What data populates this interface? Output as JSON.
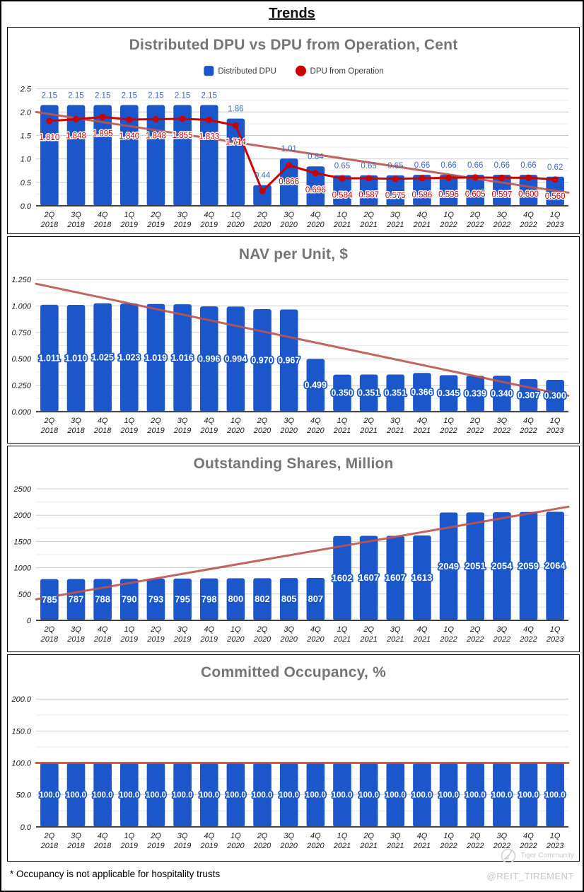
{
  "page": {
    "title": "Trends",
    "footnote": "* Occupancy is not applicable for hospitality trusts",
    "watermark": {
      "community": "Tiger Community",
      "handle": "@REIT_TIREMENT"
    }
  },
  "colors": {
    "bar": "#1b57cb",
    "bar_label": "#3e6bc7",
    "line": "#cc0000",
    "trend": "#bc544e",
    "trend_occupancy": "#d2492a",
    "grid_major": "#cccccc",
    "grid_minor": "#eaeaea",
    "axis": "#3f3f3f",
    "title": "#757575"
  },
  "categories": [
    {
      "q": "2Q",
      "y": "2018"
    },
    {
      "q": "3Q",
      "y": "2018"
    },
    {
      "q": "4Q",
      "y": "2018"
    },
    {
      "q": "1Q",
      "y": "2019"
    },
    {
      "q": "2Q",
      "y": "2019"
    },
    {
      "q": "3Q",
      "y": "2019"
    },
    {
      "q": "4Q",
      "y": "2019"
    },
    {
      "q": "1Q",
      "y": "2020"
    },
    {
      "q": "2Q",
      "y": "2020"
    },
    {
      "q": "3Q",
      "y": "2020"
    },
    {
      "q": "4Q",
      "y": "2020"
    },
    {
      "q": "1Q",
      "y": "2021"
    },
    {
      "q": "2Q",
      "y": "2021"
    },
    {
      "q": "3Q",
      "y": "2021"
    },
    {
      "q": "4Q",
      "y": "2021"
    },
    {
      "q": "1Q",
      "y": "2022"
    },
    {
      "q": "2Q",
      "y": "2022"
    },
    {
      "q": "3Q",
      "y": "2022"
    },
    {
      "q": "4Q",
      "y": "2022"
    },
    {
      "q": "1Q",
      "y": "2023"
    }
  ],
  "chart_data": [
    {
      "type": "bar+line",
      "title": "Distributed DPU vs DPU from Operation, Cent",
      "ylim": [
        0,
        2.5
      ],
      "ticks": [
        {
          "v": 2.5,
          "t": "2.5"
        },
        {
          "v": 2.0,
          "t": "2.0"
        },
        {
          "v": 1.5,
          "t": "1.5"
        },
        {
          "v": 1.0,
          "t": "1.0"
        },
        {
          "v": 0.5,
          "t": "0.5"
        },
        {
          "v": 0,
          "t": "0.0"
        }
      ],
      "legend": true,
      "grid": "major+minor",
      "series": [
        {
          "name": "Distributed DPU",
          "type": "bar",
          "label_placement": "above",
          "values": [
            2.15,
            2.15,
            2.15,
            2.15,
            2.15,
            2.15,
            2.15,
            1.86,
            0.44,
            1.01,
            0.84,
            0.65,
            0.65,
            0.65,
            0.66,
            0.66,
            0.66,
            0.66,
            0.66,
            0.62
          ],
          "labels": [
            "2.15",
            "2.15",
            "2.15",
            "2.15",
            "2.15",
            "2.15",
            "2.15",
            "1.86",
            "0.44",
            "1.01",
            "0.84",
            "0.65",
            "0.65",
            "0.65",
            "0.66",
            "0.66",
            "0.66",
            "0.66",
            "0.66",
            "0.62"
          ]
        },
        {
          "name": "DPU from Operation",
          "type": "line",
          "values": [
            1.81,
            1.848,
            1.895,
            1.84,
            1.848,
            1.855,
            1.833,
            1.714,
            0.31,
            0.866,
            0.696,
            0.584,
            0.587,
            0.575,
            0.586,
            0.596,
            0.605,
            0.597,
            0.6,
            0.56
          ],
          "labels": [
            "1.810",
            "1.848",
            "1.895",
            "1.840",
            "1.848",
            "1.855",
            "1.833",
            "1.714",
            "",
            "0.866",
            "0.696",
            "0.584",
            "0.587",
            "0.575",
            "0.586",
            "0.596",
            "0.605",
            "0.597",
            "0.600",
            "0.560"
          ]
        }
      ],
      "trendline": {
        "start": 2.0,
        "end": 0.28
      },
      "layout": {
        "plotTop": 86,
        "plotBottom": 251,
        "plotLeft": 40,
        "plotRight": 792
      }
    },
    {
      "type": "bar",
      "title": "NAV per Unit, $",
      "ylim": [
        0,
        1.25
      ],
      "ticks": [
        {
          "v": 1.25,
          "t": "1.250"
        },
        {
          "v": 1.0,
          "t": "1.000"
        },
        {
          "v": 0.75,
          "t": "0.750"
        },
        {
          "v": 0.5,
          "t": "0.500"
        },
        {
          "v": 0.25,
          "t": "0.250"
        },
        {
          "v": 0,
          "t": "0.000"
        }
      ],
      "legend": false,
      "grid": "major+minor",
      "series": [
        {
          "name": "NAV per Unit",
          "type": "bar",
          "label_placement": "center",
          "values": [
            1.011,
            1.01,
            1.025,
            1.023,
            1.019,
            1.016,
            0.996,
            0.994,
            0.97,
            0.967,
            0.499,
            0.35,
            0.351,
            0.351,
            0.366,
            0.345,
            0.339,
            0.34,
            0.307,
            0.3
          ],
          "labels": [
            "1.011",
            "1.010",
            "1.025",
            "1.023",
            "1.019",
            "1.016",
            "0.996",
            "0.994",
            "0.970",
            "0.967",
            "0.499",
            "0.350",
            "0.351",
            "0.351",
            "0.366",
            "0.345",
            "0.339",
            "0.340",
            "0.307",
            "0.300"
          ]
        }
      ],
      "trendline": {
        "start": 1.21,
        "end": 0.15
      },
      "layout": {
        "plotTop": 60,
        "plotBottom": 246,
        "plotLeft": 40,
        "plotRight": 792,
        "centerLabelSize": 12.5
      }
    },
    {
      "type": "bar",
      "title": "Outstanding Shares, Million",
      "ylim": [
        0,
        2500
      ],
      "ticks": [
        {
          "v": 2500,
          "t": "2500"
        },
        {
          "v": 2000,
          "t": "2000"
        },
        {
          "v": 1500,
          "t": "1500"
        },
        {
          "v": 1000,
          "t": "1000"
        },
        {
          "v": 500,
          "t": "500"
        },
        {
          "v": 0,
          "t": "0"
        }
      ],
      "legend": false,
      "grid": "major+minor",
      "series": [
        {
          "name": "Outstanding Shares",
          "type": "bar",
          "label_placement": "center",
          "values": [
            785,
            787,
            788,
            790,
            793,
            795,
            798,
            800,
            802,
            805,
            807,
            1602,
            1607,
            1607,
            1613,
            2049,
            2051,
            2054,
            2059,
            2064
          ],
          "labels": [
            "785",
            "787",
            "788",
            "790",
            "793",
            "795",
            "798",
            "800",
            "802",
            "805",
            "807",
            "1602",
            "1607",
            "1607",
            "1613",
            "2049",
            "2051",
            "2054",
            "2059",
            "2064"
          ]
        }
      ],
      "trendline": {
        "start": 400,
        "end": 2160
      },
      "layout": {
        "plotTop": 60,
        "plotBottom": 246,
        "plotLeft": 40,
        "plotRight": 792,
        "centerLabelSize": 13
      }
    },
    {
      "type": "bar",
      "title": "Committed Occupancy, %",
      "ylim": [
        0,
        200
      ],
      "ticks": [
        {
          "v": 200,
          "t": "200.0"
        },
        {
          "v": 150,
          "t": "150.0"
        },
        {
          "v": 100,
          "t": "100.0"
        },
        {
          "v": 50,
          "t": "50.0"
        },
        {
          "v": 0,
          "t": "0.0"
        }
      ],
      "legend": false,
      "grid": "major+minor",
      "series": [
        {
          "name": "Committed Occupancy",
          "type": "bar",
          "label_placement": "center",
          "values": [
            100,
            100,
            100,
            100,
            100,
            100,
            100,
            100,
            100,
            100,
            100,
            100,
            100,
            100,
            100,
            100,
            100,
            100,
            100,
            100
          ],
          "labels": [
            "100.0",
            "100.0",
            "100.0",
            "100.0",
            "100.0",
            "100.0",
            "100.0",
            "100.0",
            "100.0",
            "100.0",
            "100.0",
            "100.0",
            "100.0",
            "100.0",
            "100.0",
            "100.0",
            "100.0",
            "100.0",
            "100.0",
            "100.0"
          ]
        }
      ],
      "trendline": {
        "start": 100,
        "end": 100,
        "color": "#d2492a"
      },
      "layout": {
        "plotTop": 62,
        "plotBottom": 242,
        "plotLeft": 40,
        "plotRight": 792,
        "centerLabelSize": 11.5
      }
    }
  ]
}
